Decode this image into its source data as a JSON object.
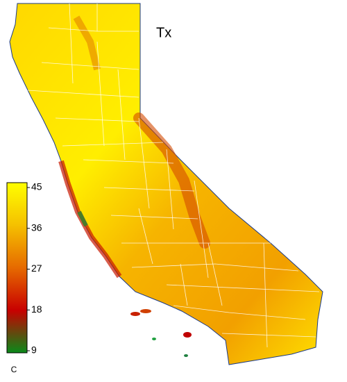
{
  "title": "Tx",
  "colorbar": {
    "lim": [
      9,
      45
    ],
    "ticks": [
      45,
      36,
      27,
      18,
      9
    ],
    "unit": "C",
    "colors": [
      "#0a8a1a",
      "#c80000",
      "#e66a00",
      "#f5c000",
      "#ffff00"
    ]
  }
}
